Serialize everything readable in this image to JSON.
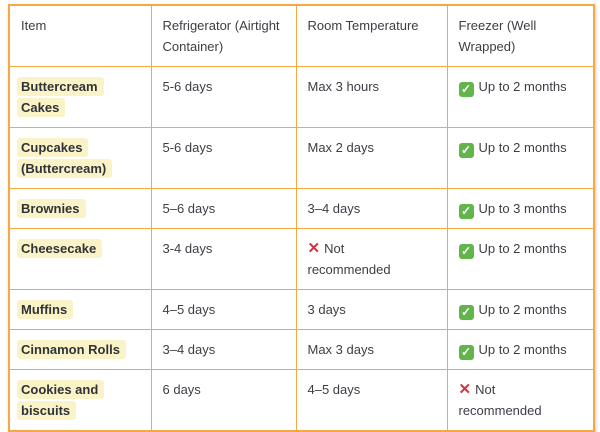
{
  "colors": {
    "table_border": "#F5A843",
    "item_highlight": "#FBF3C8",
    "text": "#3B3E44",
    "check_green": "#62B54A",
    "cross_red": "#D23440"
  },
  "icons": {
    "check": "✓",
    "cross": "✕"
  },
  "table": {
    "columns": [
      {
        "label": "Item"
      },
      {
        "label": "Refrigerator (Airtight Container)"
      },
      {
        "label": "Room Temperature"
      },
      {
        "label": "Freezer (Well Wrapped)"
      }
    ],
    "rows": [
      {
        "item": "Buttercream Cakes",
        "refrigerator": "5-6 days",
        "room_temperature": {
          "icon": null,
          "text": "Max 3 hours"
        },
        "freezer": {
          "icon": "check",
          "text": "Up to 2 months"
        }
      },
      {
        "item": "Cupcakes (Buttercream)",
        "refrigerator": "5-6 days",
        "room_temperature": {
          "icon": null,
          "text": "Max 2 days"
        },
        "freezer": {
          "icon": "check",
          "text": "Up to 2 months"
        }
      },
      {
        "item": "Brownies",
        "refrigerator": "5–6 days",
        "room_temperature": {
          "icon": null,
          "text": "3–4 days"
        },
        "freezer": {
          "icon": "check",
          "text": "Up to 3 months"
        }
      },
      {
        "item": "Cheesecake",
        "refrigerator": "3-4 days",
        "room_temperature": {
          "icon": "cross",
          "text": "Not recommended"
        },
        "freezer": {
          "icon": "check",
          "text": "Up to 2 months"
        }
      },
      {
        "item": "Muffins",
        "refrigerator": "4–5 days",
        "room_temperature": {
          "icon": null,
          "text": "3 days"
        },
        "freezer": {
          "icon": "check",
          "text": "Up to 2 months"
        }
      },
      {
        "item": "Cinnamon Rolls",
        "refrigerator": "3–4 days",
        "room_temperature": {
          "icon": null,
          "text": "Max 3 days"
        },
        "freezer": {
          "icon": "check",
          "text": "Up to 2 months"
        }
      },
      {
        "item": "Cookies and biscuits",
        "refrigerator": "6 days",
        "room_temperature": {
          "icon": null,
          "text": "4–5 days"
        },
        "freezer": {
          "icon": "cross",
          "text": "Not recommended"
        }
      }
    ]
  }
}
